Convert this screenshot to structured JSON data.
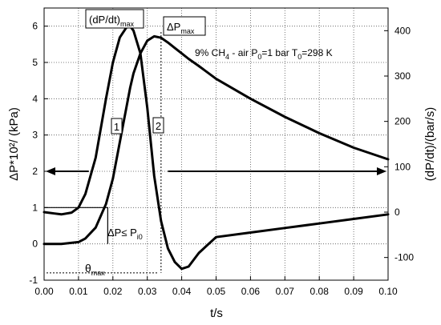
{
  "chart_data": {
    "type": "line",
    "xlabel": "t/s",
    "ylabel_left": "ΔP*10²/ (kPa)",
    "ylabel_right": "(dP/dt)/(bar/s)",
    "xlim": [
      0.0,
      0.1
    ],
    "ylim_left": [
      -1,
      6.5
    ],
    "ylim_right": [
      -150,
      450
    ],
    "x_ticks": [
      "0.00",
      "0.01",
      "0.02",
      "0.03",
      "0.04",
      "0.05",
      "0.06",
      "0.07",
      "0.08",
      "0.09",
      "0.10"
    ],
    "y_ticks_left": [
      "-1",
      "0",
      "1",
      "2",
      "3",
      "4",
      "5",
      "6"
    ],
    "y_ticks_right": [
      "-100",
      "0",
      "100",
      "200",
      "300",
      "400"
    ],
    "grid": true,
    "series": [
      {
        "axis": "left",
        "x": [
          0.0,
          0.005,
          0.01,
          0.012,
          0.015,
          0.018,
          0.02,
          0.022,
          0.024,
          0.025,
          0.026,
          0.028,
          0.03,
          0.032,
          0.034,
          0.036,
          0.038,
          0.04,
          0.042,
          0.045
        ],
        "values": [
          0,
          0,
          0.05,
          0.15,
          0.45,
          1.1,
          1.8,
          2.8,
          3.8,
          4.3,
          4.7,
          5.25,
          5.6,
          5.72,
          5.68,
          5.55,
          5.4,
          5.25,
          5.1,
          4.9
        ]
      },
      {
        "axis": "left",
        "x": [
          0.045,
          0.05,
          0.06,
          0.07,
          0.08,
          0.09,
          0.1
        ],
        "values": [
          4.9,
          4.55,
          4.0,
          3.5,
          3.05,
          2.65,
          2.33
        ]
      },
      {
        "axis": "right",
        "x": [
          0.0,
          0.003,
          0.005,
          0.008,
          0.01,
          0.012,
          0.015,
          0.018,
          0.02,
          0.022,
          0.024,
          0.025,
          0.026,
          0.028,
          0.03,
          0.032,
          0.034,
          0.036,
          0.038,
          0.04,
          0.042,
          0.045,
          0.05,
          0.06,
          0.07,
          0.08,
          0.09,
          0.1
        ],
        "values": [
          0,
          -3,
          -5,
          -1,
          10,
          40,
          120,
          250,
          330,
          385,
          408,
          410,
          400,
          350,
          230,
          80,
          -20,
          -80,
          -110,
          -125,
          -120,
          -90,
          -55,
          -45,
          -35,
          -25,
          -15,
          -5
        ]
      }
    ],
    "annotations": {
      "label_dpdt": "(dP/dt)",
      "label_dpdt_sub": "max",
      "label_dpmax": "ΔP",
      "label_dpmax_sub": "max",
      "mixture_a": "9% CH",
      "mixture_a_sub": "4",
      "mixture_b": " - air P",
      "mixture_b_sub": "0",
      "mixture_c": "=1 bar  T",
      "mixture_c_sub": "0",
      "mixture_d": "=298 K",
      "curve_1": "1",
      "curve_2": "2",
      "dp_le": "ΔP≤ P",
      "dp_le_sub": "i0",
      "theta": "θ",
      "theta_sub": "max"
    }
  }
}
